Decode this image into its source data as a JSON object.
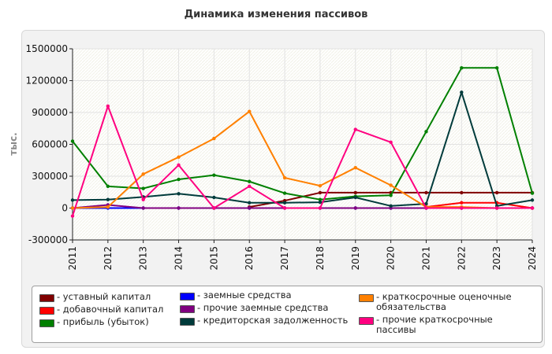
{
  "title": "Динамика изменения пассивов",
  "chart_data": {
    "type": "line",
    "title": "Динамика изменения пассивов",
    "ylabel": "тыс.",
    "xlabel": "",
    "ylim": [
      -300000,
      1500000
    ],
    "yticks": [
      -300000,
      0,
      300000,
      600000,
      900000,
      1200000,
      1500000
    ],
    "ytick_labels": [
      "-300000",
      "0",
      "300000",
      "600000",
      "900000",
      "1200000",
      "1500000"
    ],
    "categories": [
      "2011",
      "2012",
      "2013",
      "2014",
      "2015",
      "2016",
      "2017",
      "2018",
      "2019",
      "2020",
      "2021",
      "2022",
      "2023",
      "2024"
    ],
    "grid": true,
    "legend_position": "bottom",
    "series": [
      {
        "name": "уставный капитал",
        "color": "#800000",
        "values": [
          null,
          null,
          null,
          null,
          null,
          10000,
          70000,
          145000,
          145000,
          145000,
          145000,
          145000,
          145000,
          145000
        ]
      },
      {
        "name": "добавочный капитал",
        "color": "#ff0000",
        "values": [
          null,
          null,
          null,
          null,
          null,
          null,
          null,
          null,
          null,
          null,
          10000,
          50000,
          50000,
          0
        ]
      },
      {
        "name": "прибыль (убыток)",
        "color": "#008000",
        "values": [
          630000,
          205000,
          185000,
          270000,
          310000,
          250000,
          140000,
          80000,
          110000,
          120000,
          720000,
          1320000,
          1320000,
          140000
        ]
      },
      {
        "name": "заемные средства",
        "color": "#0000ff",
        "values": [
          0,
          0,
          0,
          0,
          0,
          0,
          0,
          0,
          0,
          0,
          0,
          0,
          0,
          0
        ]
      },
      {
        "name": "прочие заемные средства",
        "color": "#800080",
        "values": [
          0,
          30000,
          0,
          0,
          0,
          0,
          0,
          0,
          0,
          0,
          0,
          0,
          0,
          0
        ]
      },
      {
        "name": "кредиторская задолженность",
        "color": "#003b3b",
        "values": [
          75000,
          80000,
          105000,
          135000,
          100000,
          50000,
          50000,
          55000,
          100000,
          20000,
          40000,
          1090000,
          20000,
          75000
        ]
      },
      {
        "name": "краткосрочные оценочные обязательства",
        "color": "#ff8000",
        "values": [
          0,
          10000,
          320000,
          480000,
          655000,
          910000,
          285000,
          210000,
          380000,
          215000,
          10000,
          10000,
          0,
          0
        ]
      },
      {
        "name": "прочие краткосрочные пассивы",
        "color": "#ff0080",
        "values": [
          -75000,
          960000,
          80000,
          405000,
          0,
          205000,
          0,
          0,
          740000,
          620000,
          0,
          0,
          0,
          0
        ]
      }
    ]
  },
  "legend": {
    "items": [
      {
        "label": "- уставный капитал",
        "color": "#800000"
      },
      {
        "label": "- добавочный капитал",
        "color": "#ff0000"
      },
      {
        "label": "- прибыль (убыток)",
        "color": "#008000"
      },
      {
        "label": "- заемные средства",
        "color": "#0000ff"
      },
      {
        "label": "- прочие заемные средства",
        "color": "#800080"
      },
      {
        "label": "- кредиторская задолженность",
        "color": "#003b3b"
      },
      {
        "label": "- краткосрочные оценочные\nобязательства",
        "color": "#ff8000"
      },
      {
        "label": "- прочие краткосрочные\nпассивы",
        "color": "#ff0080"
      }
    ]
  }
}
